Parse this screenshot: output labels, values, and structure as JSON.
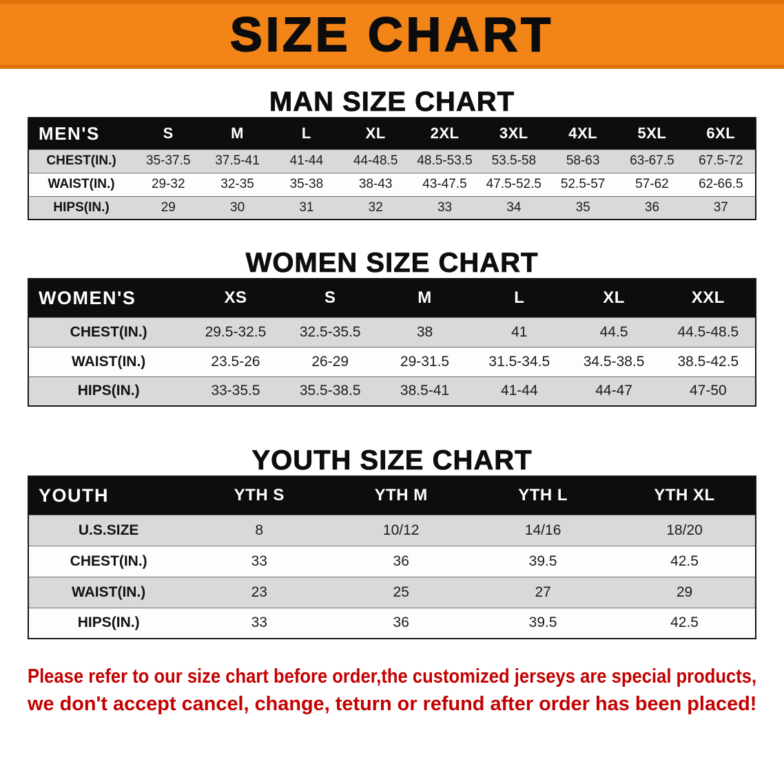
{
  "banner": {
    "title": "SIZE CHART"
  },
  "sections": [
    {
      "id": "men",
      "heading": "MAN SIZE CHART",
      "table": {
        "title": "MEN'S",
        "columns": [
          "S",
          "M",
          "L",
          "XL",
          "2XL",
          "3XL",
          "4XL",
          "5XL",
          "6XL"
        ],
        "rows": [
          {
            "label": "CHEST(IN.)",
            "values": [
              "35-37.5",
              "37.5-41",
              "41-44",
              "44-48.5",
              "48.5-53.5",
              "53.5-58",
              "58-63",
              "63-67.5",
              "67.5-72"
            ]
          },
          {
            "label": "WAIST(IN.)",
            "values": [
              "29-32",
              "32-35",
              "35-38",
              "38-43",
              "43-47.5",
              "47.5-52.5",
              "52.5-57",
              "57-62",
              "62-66.5"
            ]
          },
          {
            "label": "HIPS(IN.)",
            "values": [
              "29",
              "30",
              "31",
              "32",
              "33",
              "34",
              "35",
              "36",
              "37"
            ]
          }
        ]
      }
    },
    {
      "id": "women",
      "heading": "WOMEN SIZE CHART",
      "table": {
        "title": "WOMEN'S",
        "columns": [
          "XS",
          "S",
          "M",
          "L",
          "XL",
          "XXL"
        ],
        "rows": [
          {
            "label": "CHEST(IN.)",
            "values": [
              "29.5-32.5",
              "32.5-35.5",
              "38",
              "41",
              "44.5",
              "44.5-48.5"
            ]
          },
          {
            "label": "WAIST(IN.)",
            "values": [
              "23.5-26",
              "26-29",
              "29-31.5",
              "31.5-34.5",
              "34.5-38.5",
              "38.5-42.5"
            ]
          },
          {
            "label": "HIPS(IN.)",
            "values": [
              "33-35.5",
              "35.5-38.5",
              "38.5-41",
              "41-44",
              "44-47",
              "47-50"
            ]
          }
        ]
      }
    },
    {
      "id": "youth",
      "heading": "YOUTH SIZE CHART",
      "table": {
        "title": "YOUTH",
        "columns": [
          "YTH S",
          "YTH M",
          "YTH L",
          "YTH XL"
        ],
        "rows": [
          {
            "label": "U.S.SIZE",
            "values": [
              "8",
              "10/12",
              "14/16",
              "18/20"
            ]
          },
          {
            "label": "CHEST(IN.)",
            "values": [
              "33",
              "36",
              "39.5",
              "42.5"
            ]
          },
          {
            "label": "WAIST(IN.)",
            "values": [
              "23",
              "25",
              "27",
              "29"
            ]
          },
          {
            "label": "HIPS(IN.)",
            "values": [
              "33",
              "36",
              "39.5",
              "42.5"
            ]
          }
        ]
      }
    }
  ],
  "footer": {
    "line1": "Please refer to our size chart before order,the customized jerseys are special products,",
    "line2": "we don't accept cancel, change, teturn or refund after order has been placed!"
  },
  "colors": {
    "banner_orange": "#F28418",
    "header_black": "#0d0d0d",
    "row_gray": "#D9D9D9",
    "notice_red": "#C40000"
  }
}
